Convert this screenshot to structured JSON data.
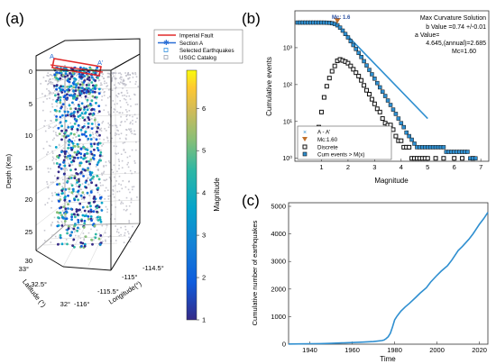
{
  "panel_labels": {
    "a": "(a)",
    "b": "(b)",
    "c": "(c)"
  },
  "colors": {
    "imperial_fault": "#e02a2a",
    "section_a": "#2a6fd6",
    "selected_eq": "#2f8fe0",
    "usgc_catalog": "#b9b9c4",
    "cum_marker": "#2f8fd0",
    "fit_line": "#2f8fd0",
    "mc_marker": "#c0702a",
    "timeseries": "#2f8fd0",
    "box": "#111111"
  },
  "chart_data": [
    {
      "type": "scatter",
      "panel": "a",
      "title": "",
      "legend": {
        "placement": "top-right",
        "entries": [
          "Imperial Fault",
          "Section A",
          "Selected Earthquakes",
          "USGC Catalog"
        ]
      },
      "section_labels": [
        "A",
        "A'"
      ],
      "zlabel": "Depth (Km)",
      "ylabel": "Latitude (°)",
      "xlabel": "Longitude(°)",
      "depth_ticks": [
        "0",
        "5",
        "10",
        "15",
        "20",
        "25",
        "30"
      ],
      "lat_ticks": [
        "32°",
        "32.5°",
        "33°"
      ],
      "lon_ticks": [
        "-116°",
        "-115.5°",
        "-115°",
        "-114.5°"
      ],
      "zlim": [
        0,
        30
      ],
      "colorbar": {
        "label": "Magnitude",
        "ticks": [
          "1",
          "2",
          "3",
          "4",
          "5",
          "6"
        ],
        "range": [
          1,
          6.9
        ]
      }
    },
    {
      "type": "scatter",
      "panel": "b",
      "title": "Max Curvature Solution",
      "xlabel": "Magnitude",
      "ylabel": "Cumulative events",
      "xlim": [
        0,
        7.3
      ],
      "ylim": [
        1,
        10000
      ],
      "yscale": "log",
      "x_ticks": [
        "1",
        "2",
        "3",
        "4",
        "5",
        "6",
        "7"
      ],
      "y_ticks": [
        "10⁰",
        "10¹",
        "10²",
        "10³"
      ],
      "mc_label": "Mc: 1.6",
      "annotations": [
        "b Value =0.74 +/-0.01",
        "a  Value= 4.645,(annual)=2.685",
        "Mc=1.60"
      ],
      "legend": {
        "placement": "bottom-left",
        "entries": [
          "A - A'",
          "Mc:1.60",
          "Discrete",
          "Cum events  > M(x)"
        ]
      },
      "series": [
        {
          "name": "Cum events  > M(x)",
          "x": [
            0.1,
            0.2,
            0.3,
            0.4,
            0.5,
            0.6,
            0.7,
            0.8,
            0.9,
            1.0,
            1.1,
            1.2,
            1.3,
            1.4,
            1.5,
            1.6,
            1.7,
            1.8,
            1.9,
            2.0,
            2.1,
            2.2,
            2.3,
            2.4,
            2.5,
            2.6,
            2.7,
            2.8,
            2.9,
            3.0,
            3.1,
            3.2,
            3.3,
            3.4,
            3.5,
            3.6,
            3.7,
            3.8,
            3.9,
            4.0,
            4.1,
            4.2,
            4.3,
            4.4,
            4.5,
            4.6,
            4.7,
            4.8,
            4.9,
            5.0,
            5.1,
            5.2,
            5.3,
            5.4,
            5.5,
            5.6,
            5.7,
            5.8,
            5.9,
            6.0,
            6.1,
            6.2,
            6.3,
            6.4,
            6.5,
            6.6,
            6.7,
            6.8
          ],
          "y": [
            4800,
            4800,
            4800,
            4800,
            4800,
            4800,
            4800,
            4800,
            4800,
            4800,
            4790,
            4770,
            4720,
            4600,
            4400,
            4050,
            3500,
            2900,
            2350,
            1900,
            1500,
            1180,
            920,
            720,
            560,
            430,
            330,
            250,
            190,
            145,
            110,
            84,
            64,
            49,
            37,
            28,
            21,
            16,
            12,
            9,
            7,
            5,
            4,
            3.2,
            2.5,
            2,
            2,
            2,
            2,
            2,
            2,
            2,
            2,
            2,
            2,
            2,
            1.5,
            1.5,
            1.5,
            1.5,
            1.5,
            1.5,
            1.5,
            1.5,
            1.5,
            1,
            1,
            1
          ]
        },
        {
          "name": "Discrete",
          "x": [
            0.9,
            1.0,
            1.1,
            1.2,
            1.3,
            1.4,
            1.5,
            1.6,
            1.7,
            1.8,
            1.9,
            2.0,
            2.1,
            2.2,
            2.3,
            2.4,
            2.5,
            2.6,
            2.7,
            2.8,
            2.9,
            3.0,
            3.1,
            3.2,
            3.3,
            3.4,
            3.5,
            3.6,
            3.7,
            3.8,
            3.9,
            4.0,
            4.1,
            4.2,
            4.3,
            4.4,
            4.5,
            4.6,
            4.7,
            4.8,
            4.9,
            5.0,
            5.3,
            5.6,
            6.0,
            6.3,
            6.7
          ],
          "y": [
            7,
            18,
            45,
            90,
            150,
            230,
            320,
            440,
            480,
            450,
            420,
            380,
            320,
            260,
            210,
            170,
            130,
            95,
            70,
            55,
            40,
            30,
            22,
            18,
            12,
            9,
            8,
            8,
            6,
            4,
            3,
            3,
            2,
            2,
            2,
            1,
            1,
            1,
            1,
            1,
            1,
            1,
            1,
            1,
            1,
            1,
            1
          ]
        },
        {
          "name": "A - A'",
          "type": "line",
          "x": [
            1.6,
            5.0
          ],
          "y": [
            4050,
            12
          ]
        }
      ],
      "mc_point": {
        "x": 1.6,
        "y": 4800
      }
    },
    {
      "type": "line",
      "panel": "c",
      "title": "",
      "xlabel": "Time",
      "ylabel": "Cumulative number of earthquakes",
      "xlim": [
        1930,
        2024
      ],
      "ylim": [
        0,
        5000
      ],
      "x_ticks": [
        "1940",
        "1960",
        "1980",
        "2000",
        "2020"
      ],
      "y_ticks": [
        "0",
        "1000",
        "2000",
        "3000",
        "4000",
        "5000"
      ],
      "series": [
        {
          "name": "",
          "x": [
            1930,
            1935,
            1940,
            1945,
            1950,
            1955,
            1960,
            1965,
            1970,
            1972,
            1974,
            1975,
            1976,
            1977,
            1978,
            1979,
            1980,
            1981,
            1982,
            1983,
            1985,
            1987,
            1990,
            1992,
            1995,
            1997,
            2000,
            2002,
            2005,
            2007,
            2010,
            2012,
            2015,
            2017,
            2020,
            2022,
            2024
          ],
          "y": [
            5,
            10,
            15,
            20,
            30,
            45,
            60,
            75,
            95,
            110,
            130,
            150,
            200,
            270,
            400,
            620,
            880,
            1000,
            1100,
            1200,
            1350,
            1480,
            1700,
            1850,
            2050,
            2250,
            2500,
            2650,
            2850,
            3050,
            3400,
            3550,
            3800,
            4000,
            4350,
            4550,
            4780
          ]
        }
      ]
    }
  ]
}
